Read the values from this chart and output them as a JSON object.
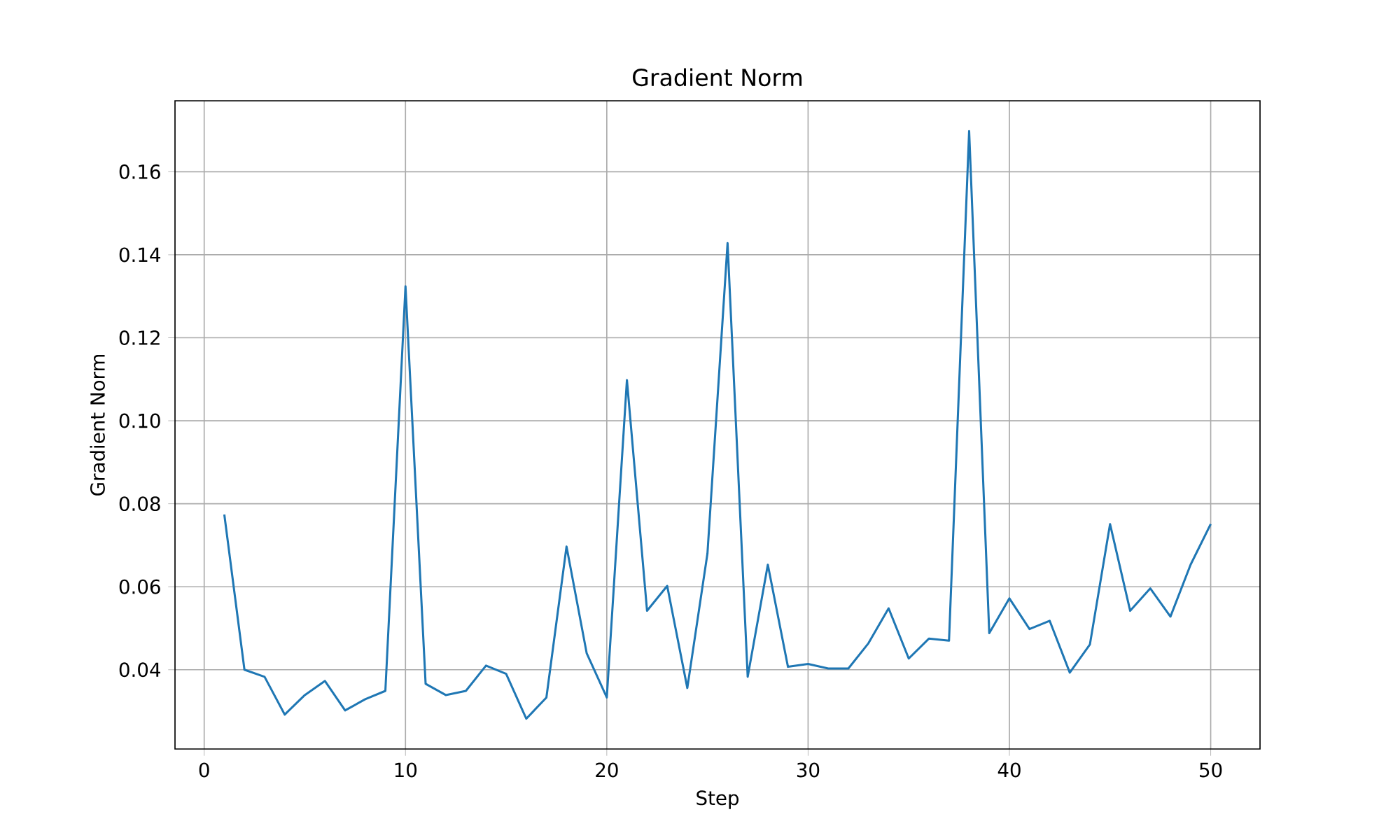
{
  "chart_data": {
    "type": "line",
    "title": "Gradient Norm",
    "xlabel": "Step",
    "ylabel": "Gradient Norm",
    "x": [
      1,
      2,
      3,
      4,
      5,
      6,
      7,
      8,
      9,
      10,
      11,
      12,
      13,
      14,
      15,
      16,
      17,
      18,
      19,
      20,
      21,
      22,
      23,
      24,
      25,
      26,
      27,
      28,
      29,
      30,
      31,
      32,
      33,
      34,
      35,
      36,
      37,
      38,
      39,
      40,
      41,
      42,
      43,
      44,
      45,
      46,
      47,
      48,
      49,
      50
    ],
    "series": [
      {
        "color": "#1f77b4",
        "values": [
          0.0774,
          0.04,
          0.0383,
          0.0292,
          0.0339,
          0.0373,
          0.0302,
          0.0329,
          0.0349,
          0.1324,
          0.0366,
          0.0339,
          0.0349,
          0.041,
          0.039,
          0.0282,
          0.0333,
          0.0697,
          0.044,
          0.0333,
          0.1098,
          0.0542,
          0.0602,
          0.0356,
          0.068,
          0.1428,
          0.0383,
          0.0653,
          0.0407,
          0.0414,
          0.0403,
          0.0403,
          0.0464,
          0.0548,
          0.0427,
          0.0475,
          0.047,
          0.1698,
          0.0488,
          0.0572,
          0.0498,
          0.0518,
          0.0393,
          0.0461,
          0.0751,
          0.0542,
          0.0596,
          0.0528,
          0.0653,
          0.0751
        ]
      }
    ],
    "xlim": [
      -1.45,
      52.45
    ],
    "ylim": [
      0.0209,
      0.1771
    ],
    "xticks": [
      0,
      10,
      20,
      30,
      40,
      50
    ],
    "yticks": [
      0.04,
      0.06,
      0.08,
      {
        "value": 0.1,
        "label": "0.10"
      },
      0.12,
      0.14,
      0.16
    ],
    "grid": true,
    "line_style": "solid",
    "marker": "none"
  }
}
